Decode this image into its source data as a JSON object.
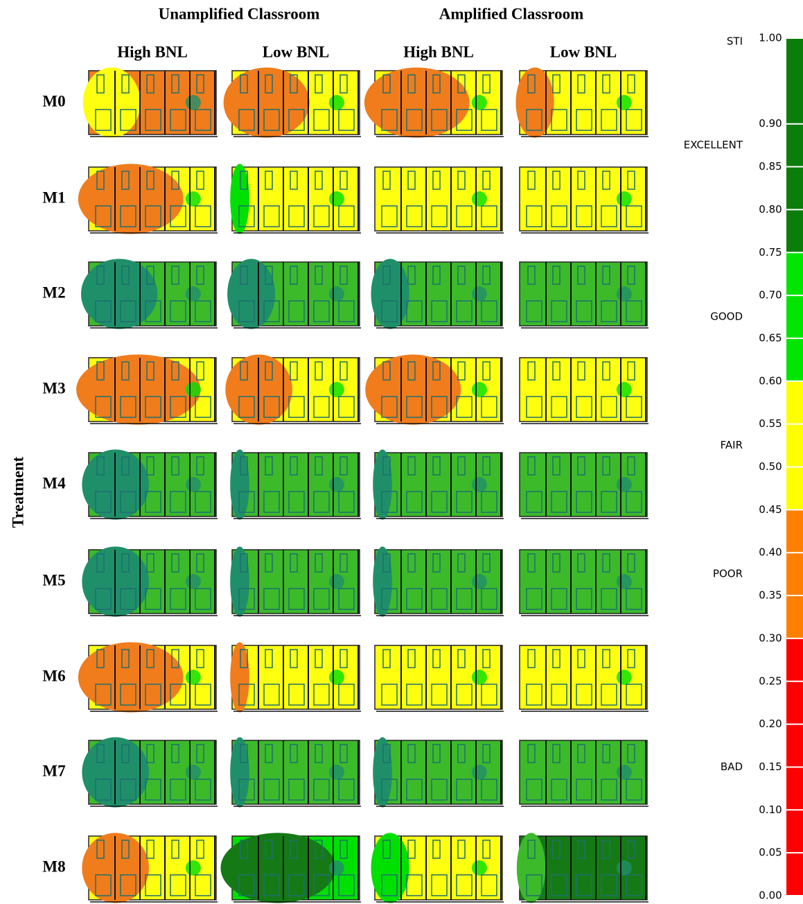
{
  "column_groups": [
    "Unamplified Classroom",
    "Amplified Classroom"
  ],
  "columns": [
    "High BNL",
    "Low BNL",
    "High BNL",
    "Low BNL"
  ],
  "y_label": "Treatment",
  "rows": [
    "M0",
    "M1",
    "M2",
    "M3",
    "M4",
    "M5",
    "M6",
    "M7",
    "M8"
  ],
  "legend": {
    "title": "STI",
    "ticks": [
      {
        "value": 1,
        "label": "1.00"
      },
      {
        "value": 0.9,
        "label": "0.90"
      },
      {
        "value": 0.85,
        "label": "0.85"
      },
      {
        "value": 0.8,
        "label": "0.80"
      },
      {
        "value": 0.75,
        "label": "0.75"
      },
      {
        "value": 0.7,
        "label": "0.70"
      },
      {
        "value": 0.65,
        "label": "0.65"
      },
      {
        "value": 0.6,
        "label": "0.60"
      },
      {
        "value": 0.55,
        "label": "0.55"
      },
      {
        "value": 0.5,
        "label": "0.50"
      },
      {
        "value": 0.45,
        "label": "0.45"
      },
      {
        "value": 0.4,
        "label": "0.40"
      },
      {
        "value": 0.35,
        "label": "0.35"
      },
      {
        "value": 0.3,
        "label": "0.30"
      },
      {
        "value": 0.25,
        "label": "0.25"
      },
      {
        "value": 0.2,
        "label": "0.20"
      },
      {
        "value": 0.15,
        "label": "0.15"
      },
      {
        "value": 0.1,
        "label": "0.10"
      },
      {
        "value": 0.05,
        "label": "0.05"
      },
      {
        "value": 0,
        "label": "0.00"
      }
    ],
    "bands": [
      {
        "name": "EXCELLENT",
        "from": 0.75,
        "to": 1,
        "color": "#0a7d0a"
      },
      {
        "name": "GOOD",
        "from": 0.6,
        "to": 0.75,
        "color": "#00e600"
      },
      {
        "name": "FAIR",
        "from": 0.45,
        "to": 0.6,
        "color": "#ffff00"
      },
      {
        "name": "POOR",
        "from": 0.3,
        "to": 0.45,
        "color": "#ff8000"
      },
      {
        "name": "BAD",
        "from": 0,
        "to": 0.3,
        "color": "#ff0000"
      }
    ]
  }
}
